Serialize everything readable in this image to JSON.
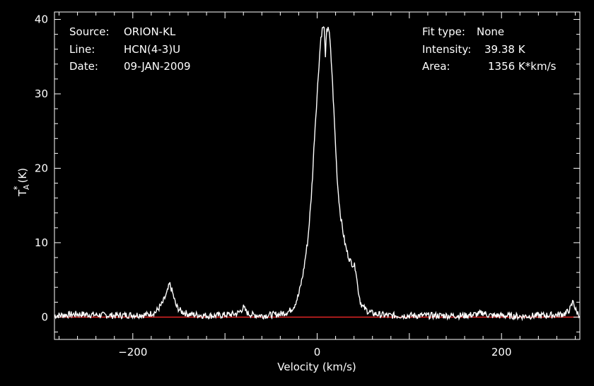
{
  "info": {
    "source_label": "Source:",
    "source_value": "ORION-KL",
    "line_label": "Line:",
    "line_value": "HCN(4-3)U",
    "date_label": "Date:",
    "date_value": "09-JAN-2009",
    "fit_type_label": "Fit type:",
    "fit_type_value": "None",
    "intensity_label": "Intensity:",
    "intensity_value": "39.38 K",
    "area_label": "Area:",
    "area_value": "1356 K*km/s"
  },
  "chart_data": {
    "type": "line",
    "xlabel": "Velocity (km/s)",
    "ylabel": "T",
    "ylabel_sup": "*",
    "ylabel_sub": "A",
    "ylabel_unit": "(K)",
    "xlim": [
      -285,
      285
    ],
    "ylim": [
      -3,
      41
    ],
    "xticks": [
      -200,
      0,
      200
    ],
    "xtick_labels": [
      "−200",
      "0",
      "200"
    ],
    "yticks": [
      0,
      10,
      20,
      30,
      40
    ],
    "ytick_labels": [
      "0",
      "10",
      "20",
      "30",
      "40"
    ],
    "baseline": 0,
    "colors": {
      "background": "#000000",
      "spectrum": "#ffffff",
      "baseline": "#ff2a2a",
      "axes": "#ffffff"
    },
    "series": [
      {
        "x": [
          -285,
          -260,
          -240,
          -220,
          -200,
          -185,
          -175,
          -168,
          -163,
          -160,
          -157,
          -153,
          -148,
          -140,
          -130,
          -120,
          -110,
          -100,
          -90,
          -85,
          -82,
          -80,
          -78,
          -75,
          -70,
          -60,
          -50,
          -40,
          -30,
          -25,
          -20,
          -15,
          -10,
          -7,
          -5,
          -3,
          0,
          2,
          4,
          6,
          8,
          9,
          10,
          12,
          14,
          16,
          18,
          20,
          22,
          25,
          28,
          30,
          33,
          36,
          38,
          40,
          42,
          44,
          47,
          50,
          55,
          60,
          70,
          80,
          100,
          130,
          160,
          175,
          180,
          185,
          190,
          200,
          220,
          240,
          260,
          270,
          275,
          278,
          280,
          283,
          285
        ],
        "y": [
          0.2,
          0.4,
          0.3,
          0.2,
          0.3,
          0.3,
          0.7,
          1.8,
          3.2,
          4.5,
          3.3,
          1.5,
          0.8,
          0.4,
          0.3,
          0.2,
          0.2,
          0.3,
          0.4,
          0.6,
          1.0,
          1.3,
          0.9,
          0.5,
          0.3,
          0.2,
          0.3,
          0.4,
          0.8,
          1.5,
          3.0,
          6.0,
          10.5,
          15.0,
          19.0,
          24.0,
          30.0,
          34.0,
          37.5,
          39.0,
          38.6,
          34.5,
          38.0,
          39.3,
          37.0,
          33.0,
          28.0,
          23.0,
          18.0,
          14.0,
          11.5,
          10.0,
          8.5,
          7.5,
          7.2,
          7.0,
          6.5,
          4.0,
          2.0,
          1.3,
          0.8,
          0.5,
          0.3,
          0.2,
          0.2,
          0.2,
          0.2,
          0.4,
          0.6,
          0.3,
          0.2,
          0.2,
          0.1,
          0.2,
          0.3,
          0.5,
          1.2,
          2.3,
          1.0,
          0.5,
          0.3
        ]
      }
    ]
  }
}
